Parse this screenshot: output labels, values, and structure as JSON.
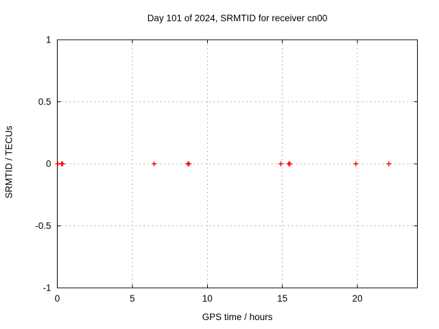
{
  "chart_data": {
    "type": "scatter",
    "title": "Day 101 of 2024, SRMTID for receiver cn00",
    "xlabel": "GPS time / hours",
    "ylabel": "SRMTID / TECUs",
    "xlim": [
      0,
      24
    ],
    "ylim": [
      -1,
      1
    ],
    "xticks": [
      0,
      5,
      10,
      15,
      20
    ],
    "xtick_labels": [
      "0",
      "5",
      "10",
      "15",
      "20"
    ],
    "yticks": [
      -1,
      -0.5,
      0,
      0.5,
      1
    ],
    "ytick_labels": [
      "-1",
      "-0.5",
      "0",
      "0.5",
      "1"
    ],
    "grid": true,
    "grid_style": "dashed",
    "legend": false,
    "marker": "plus",
    "series": [
      {
        "name": "SRMTID",
        "x": [
          0.03,
          0.28,
          0.36,
          6.45,
          8.7,
          8.78,
          14.9,
          15.43,
          15.5,
          19.9,
          22.1
        ],
        "y": [
          0,
          0,
          0,
          0,
          0,
          0,
          0,
          0,
          0,
          0,
          0
        ]
      }
    ],
    "colors": {
      "marker": "#ff0000",
      "grid": "#b0b0b0",
      "axis": "#000000",
      "background": "#ffffff"
    }
  }
}
